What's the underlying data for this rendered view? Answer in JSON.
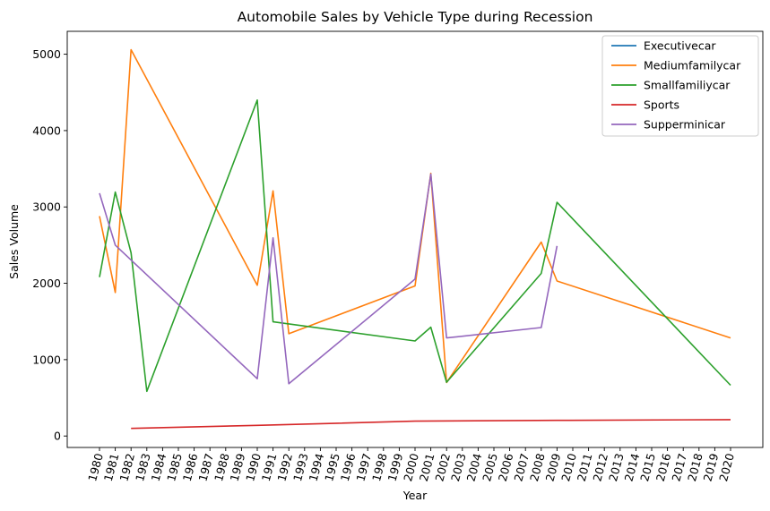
{
  "chart_data": {
    "type": "line",
    "title": "Automobile Sales by Vehicle Type during Recession",
    "xlabel": "Year",
    "ylabel": "Sales Volume",
    "x_ticks": [
      1980,
      1981,
      1982,
      1983,
      1984,
      1985,
      1986,
      1987,
      1988,
      1989,
      1990,
      1991,
      1992,
      1993,
      1994,
      1995,
      1996,
      1997,
      1998,
      1999,
      2000,
      2001,
      2002,
      2003,
      2004,
      2005,
      2006,
      2007,
      2008,
      2009,
      2010,
      2011,
      2012,
      2013,
      2014,
      2015,
      2016,
      2017,
      2018,
      2019,
      2020
    ],
    "y_ticks": [
      0,
      1000,
      2000,
      3000,
      4000,
      5000
    ],
    "ylim": [
      -150,
      5300
    ],
    "grid": false,
    "legend_position": "top-right",
    "series": [
      {
        "name": "Executivecar",
        "color": "#1f77b4",
        "points": []
      },
      {
        "name": "Mediumfamilycar",
        "color": "#ff7f0e",
        "points": [
          [
            1980,
            2880
          ],
          [
            1981,
            1880
          ],
          [
            1982,
            5060
          ],
          [
            1990,
            1975
          ],
          [
            1991,
            3210
          ],
          [
            1992,
            1340
          ],
          [
            2000,
            1965
          ],
          [
            2001,
            3440
          ],
          [
            2002,
            700
          ],
          [
            2008,
            2540
          ],
          [
            2009,
            2030
          ],
          [
            2020,
            1285
          ]
        ]
      },
      {
        "name": "Smallfamiliycar",
        "color": "#2ca02c",
        "points": [
          [
            1980,
            2080
          ],
          [
            1981,
            3195
          ],
          [
            1982,
            2400
          ],
          [
            1983,
            585
          ],
          [
            1990,
            4400
          ],
          [
            1991,
            1495
          ],
          [
            2000,
            1245
          ],
          [
            2001,
            1425
          ],
          [
            2002,
            705
          ],
          [
            2008,
            2130
          ],
          [
            2009,
            3060
          ],
          [
            2020,
            665
          ]
        ]
      },
      {
        "name": "Sports",
        "color": "#d62728",
        "points": [
          [
            1982,
            100
          ],
          [
            1990,
            140
          ],
          [
            2000,
            195
          ],
          [
            2009,
            205
          ],
          [
            2020,
            215
          ]
        ]
      },
      {
        "name": "Supperminicar",
        "color": "#9467bd",
        "points": [
          [
            1980,
            3180
          ],
          [
            1981,
            2500
          ],
          [
            1990,
            750
          ],
          [
            1991,
            2595
          ],
          [
            1992,
            685
          ],
          [
            2000,
            2055
          ],
          [
            2001,
            3430
          ],
          [
            2002,
            1285
          ],
          [
            2008,
            1420
          ],
          [
            2009,
            2490
          ]
        ]
      }
    ]
  }
}
